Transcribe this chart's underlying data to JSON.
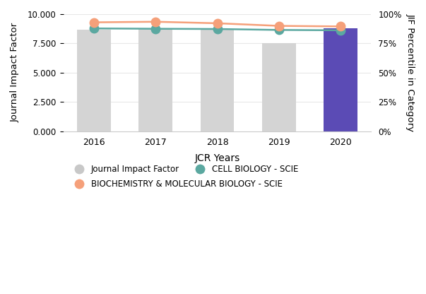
{
  "years": [
    2016,
    2017,
    2018,
    2019,
    2020
  ],
  "bar_values": [
    8.7,
    8.72,
    8.65,
    7.5,
    8.8
  ],
  "bar_colors": [
    "#d4d4d4",
    "#d4d4d4",
    "#d4d4d4",
    "#d4d4d4",
    "#5B4BB5"
  ],
  "cell_biology": [
    8.78,
    8.75,
    8.73,
    8.65,
    8.62
  ],
  "biochem": [
    9.3,
    9.35,
    9.22,
    9.0,
    8.95
  ],
  "cell_bio_color": "#5BA8A0",
  "biochem_color": "#F5A07A",
  "ylabel_left": "Journal Impact Factor",
  "ylabel_right": "JIF Percentile in Category",
  "xlabel": "JCR Years",
  "ylim_left": [
    0,
    10
  ],
  "yticks_left": [
    0.0,
    2.5,
    5.0,
    7.5,
    10.0
  ],
  "ytick_labels_left": [
    "0.000",
    "2.500",
    "5.000",
    "7.500",
    "10.000"
  ],
  "ytick_labels_right": [
    "0%",
    "25%",
    "50%",
    "75%",
    "100%"
  ],
  "legend_jif": "Journal Impact Factor",
  "legend_cell": "CELL BIOLOGY - SCIE",
  "legend_biochem": "BIOCHEMISTRY & MOLECULAR BIOLOGY - SCIE",
  "bar_width": 0.55,
  "background_color": "#ffffff",
  "line_width": 1.8,
  "marker_size": 9,
  "grid_color": "#e8e8e8"
}
